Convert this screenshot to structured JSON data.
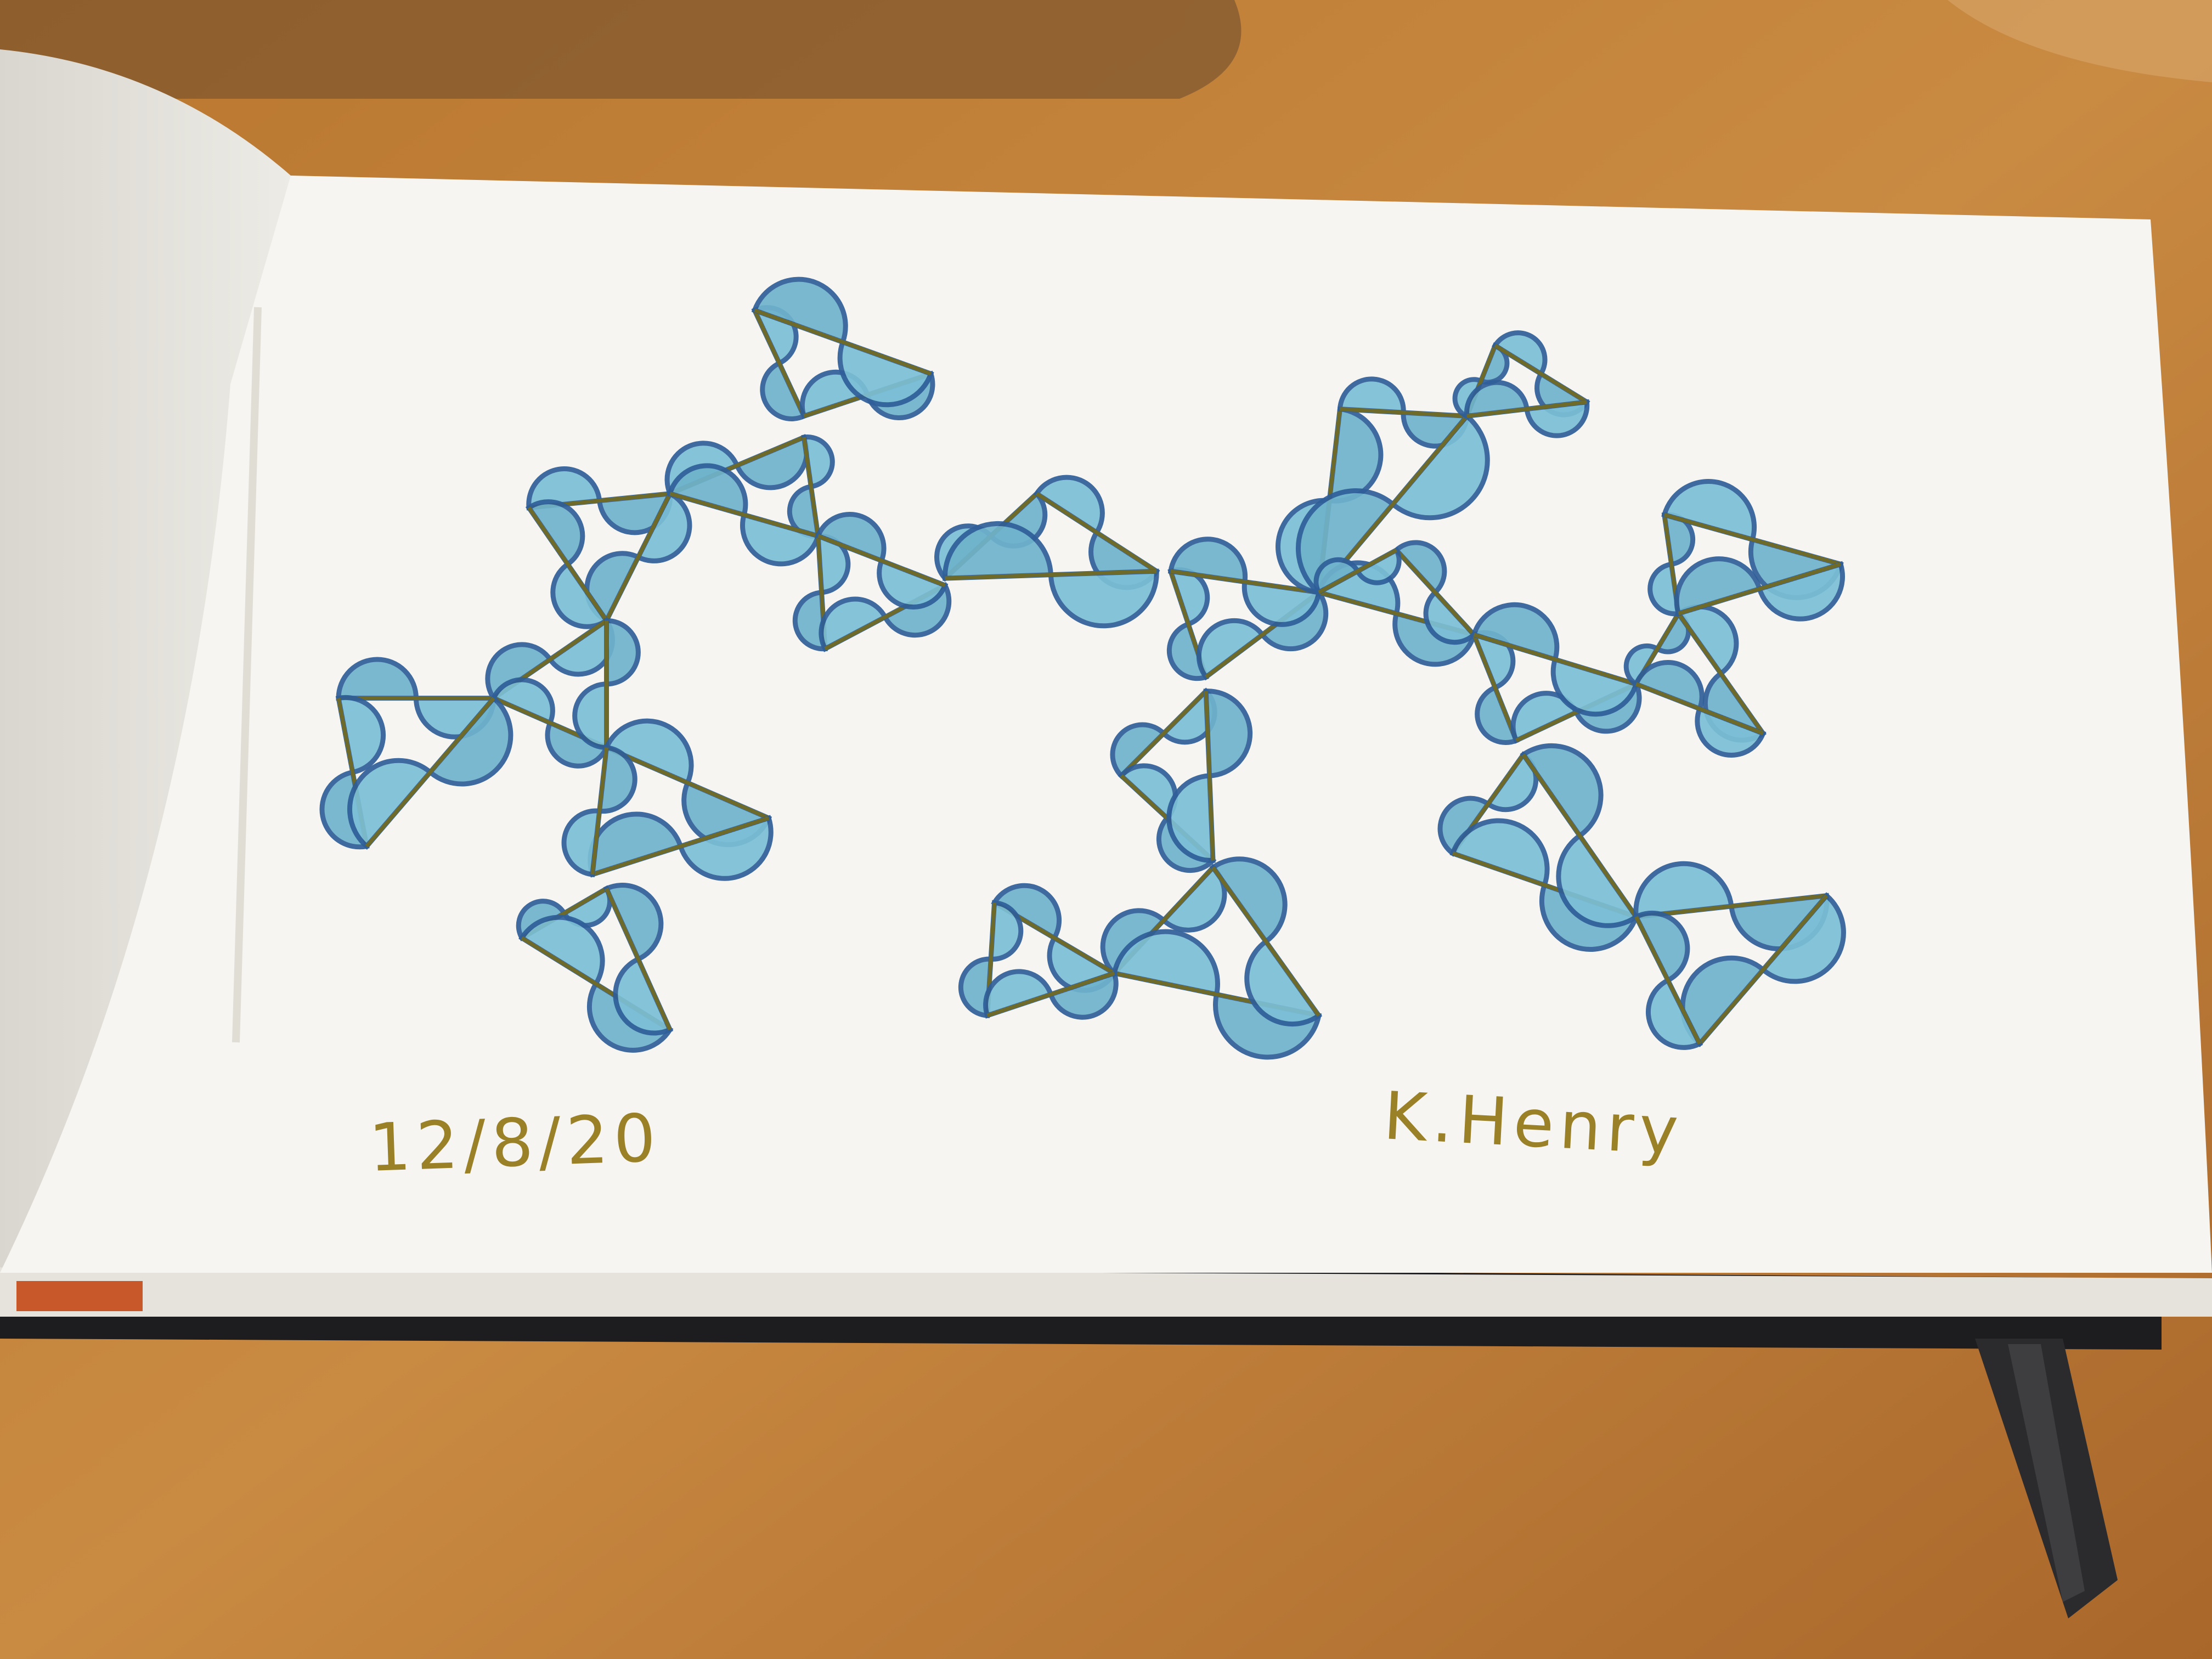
{
  "sketch": {
    "date": "12/8/20",
    "signature": "K.Henry"
  }
}
